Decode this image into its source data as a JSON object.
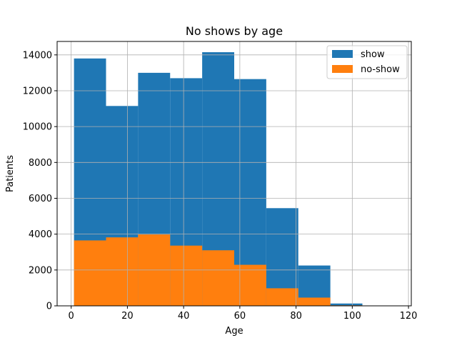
{
  "chart_data": {
    "type": "bar",
    "title": "No shows by age",
    "xlabel": "Age",
    "ylabel": "Patients",
    "xlim": [
      -5,
      121
    ],
    "ylim": [
      0,
      14750
    ],
    "xticks": [
      0,
      20,
      40,
      60,
      80,
      100,
      120
    ],
    "yticks": [
      0,
      2000,
      4000,
      6000,
      8000,
      10000,
      12000,
      14000
    ],
    "grid": true,
    "legend_position": "top-right",
    "bin_edges": [
      1.0,
      12.4,
      23.8,
      35.2,
      46.6,
      58.0,
      69.4,
      80.8,
      92.2,
      103.6,
      115.0
    ],
    "series": [
      {
        "name": "show",
        "color": "#1f77b4",
        "values": [
          13800,
          11150,
          13000,
          12700,
          14150,
          12650,
          5450,
          2250,
          130,
          10
        ]
      },
      {
        "name": "no-show",
        "color": "#ff7f0e",
        "values": [
          3650,
          3820,
          3980,
          3360,
          3100,
          2290,
          980,
          460,
          30,
          5
        ]
      }
    ]
  }
}
